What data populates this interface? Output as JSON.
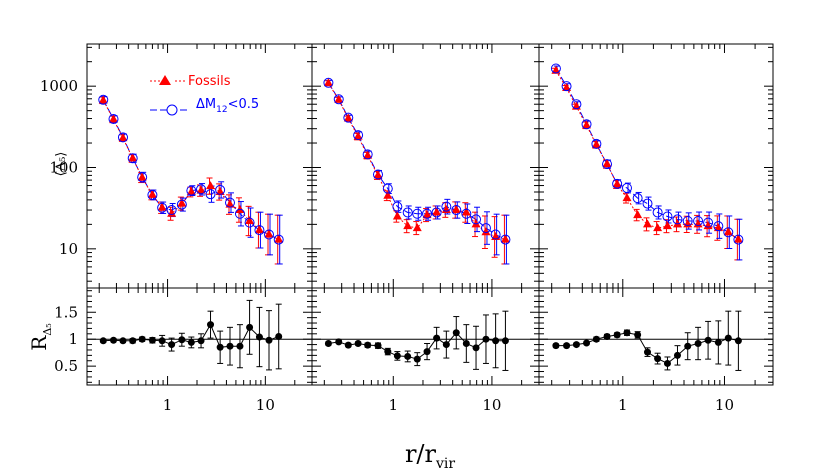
{
  "chart_data": {
    "type": "scatter",
    "description_axes": {
      "xscale": "log",
      "xlim": [
        0.15,
        30
      ],
      "top_yscale": "log",
      "top_ylim": [
        3.3,
        3300
      ],
      "bottom_ylim": [
        0.15,
        1.95
      ]
    },
    "xlabel": "r/r",
    "xlabel_sub": "vir",
    "top_ylabel": "⟨Δ₅⟩",
    "bottom_ylabel": "R",
    "bottom_ylabel_sub": "Δ₅",
    "x_ticks": [
      {
        "v": 1,
        "label": "1"
      },
      {
        "v": 10,
        "label": "10"
      }
    ],
    "top_y_ticks": [
      {
        "v": 10,
        "label": "10"
      },
      {
        "v": 100,
        "label": "100"
      },
      {
        "v": 1000,
        "label": "1000"
      }
    ],
    "bottom_y_ticks": [
      {
        "v": 0.5,
        "label": "0.5"
      },
      {
        "v": 1,
        "label": "1"
      },
      {
        "v": 1.5,
        "label": "1.5"
      }
    ],
    "legend": [
      {
        "name": "Fossils",
        "color": "#ff0000",
        "marker": "triangle",
        "line": "dotted"
      },
      {
        "name": "ΔM",
        "sub": "12",
        "suffix": "<0.5",
        "color": "#0000ff",
        "marker": "circle",
        "line": "dashed"
      }
    ],
    "reference_line": 1,
    "x": [
      0.22,
      0.28,
      0.35,
      0.44,
      0.55,
      0.7,
      0.88,
      1.1,
      1.4,
      1.75,
      2.2,
      2.75,
      3.45,
      4.35,
      5.5,
      6.9,
      8.7,
      10.9,
      13.7
    ],
    "panels": [
      {
        "fossils": [
          670,
          390,
          230,
          130,
          75,
          46,
          32,
          27,
          36,
          50,
          52,
          59,
          50,
          35,
          30,
          22,
          17,
          15,
          13
        ],
        "dm12": [
          680,
          395,
          235,
          130,
          76,
          46,
          32,
          30,
          35,
          52,
          54,
          47,
          53,
          37,
          27,
          21,
          17,
          15,
          13
        ],
        "top_err_lo": [
          0.04,
          0.04,
          0.04,
          0.05,
          0.06,
          0.06,
          0.07,
          0.08,
          0.08,
          0.06,
          0.07,
          0.1,
          0.1,
          0.12,
          0.15,
          0.18,
          0.22,
          0.25,
          0.3
        ],
        "top_err_hi": [
          0.04,
          0.04,
          0.04,
          0.05,
          0.06,
          0.06,
          0.07,
          0.08,
          0.08,
          0.06,
          0.07,
          0.1,
          0.1,
          0.12,
          0.15,
          0.18,
          0.22,
          0.25,
          0.3
        ],
        "ratio": [
          0.97,
          0.98,
          0.97,
          0.97,
          1.0,
          0.98,
          0.97,
          0.9,
          0.99,
          0.94,
          0.97,
          1.27,
          0.85,
          0.87,
          0.87,
          1.22,
          1.04,
          0.98,
          1.05
        ],
        "ratio_err": [
          0.03,
          0.03,
          0.03,
          0.04,
          0.04,
          0.05,
          0.1,
          0.12,
          0.12,
          0.1,
          0.13,
          0.25,
          0.3,
          0.35,
          0.4,
          0.5,
          0.55,
          0.55,
          0.6
        ]
      },
      {
        "fossils": [
          1090,
          680,
          400,
          240,
          140,
          80,
          45,
          25,
          19,
          18,
          26,
          28,
          30,
          30,
          28,
          20,
          16,
          14,
          13
        ],
        "dm12": [
          1100,
          690,
          410,
          250,
          145,
          82,
          55,
          33,
          28,
          27,
          27,
          28,
          33,
          30,
          27,
          23,
          18,
          15,
          13
        ],
        "top_err_lo": [
          0.03,
          0.03,
          0.03,
          0.04,
          0.04,
          0.05,
          0.06,
          0.07,
          0.08,
          0.08,
          0.08,
          0.08,
          0.09,
          0.1,
          0.12,
          0.15,
          0.2,
          0.25,
          0.3
        ],
        "top_err_hi": [
          0.03,
          0.03,
          0.03,
          0.04,
          0.04,
          0.05,
          0.06,
          0.07,
          0.08,
          0.08,
          0.08,
          0.08,
          0.09,
          0.1,
          0.12,
          0.15,
          0.2,
          0.25,
          0.3
        ],
        "ratio": [
          0.92,
          0.95,
          0.89,
          0.92,
          0.89,
          0.88,
          0.77,
          0.69,
          0.68,
          0.63,
          0.77,
          1.02,
          0.9,
          1.12,
          0.92,
          0.84,
          1.0,
          0.97,
          0.97
        ],
        "ratio_err": [
          0.03,
          0.03,
          0.03,
          0.03,
          0.04,
          0.05,
          0.06,
          0.08,
          0.1,
          0.12,
          0.15,
          0.2,
          0.25,
          0.3,
          0.35,
          0.4,
          0.45,
          0.5,
          0.55
        ]
      },
      {
        "fossils": [
          1550,
          950,
          560,
          330,
          190,
          110,
          62,
          42,
          26,
          20,
          18,
          19,
          20,
          20,
          20,
          19,
          18,
          16,
          13
        ],
        "dm12": [
          1650,
          1000,
          600,
          340,
          195,
          110,
          63,
          56,
          42,
          36,
          28,
          25,
          23,
          22,
          22,
          21,
          19,
          16,
          13
        ],
        "top_err_lo": [
          0.03,
          0.03,
          0.03,
          0.04,
          0.04,
          0.05,
          0.05,
          0.06,
          0.07,
          0.08,
          0.08,
          0.08,
          0.09,
          0.1,
          0.11,
          0.13,
          0.15,
          0.2,
          0.25
        ],
        "top_err_hi": [
          0.03,
          0.03,
          0.03,
          0.04,
          0.04,
          0.05,
          0.05,
          0.06,
          0.07,
          0.08,
          0.08,
          0.08,
          0.09,
          0.1,
          0.11,
          0.13,
          0.15,
          0.2,
          0.25
        ],
        "ratio": [
          0.88,
          0.88,
          0.9,
          0.93,
          1.0,
          1.05,
          1.08,
          1.12,
          1.08,
          0.76,
          0.64,
          0.55,
          0.7,
          0.87,
          0.92,
          0.98,
          0.94,
          1.02,
          0.97
        ],
        "ratio_err": [
          0.03,
          0.03,
          0.03,
          0.03,
          0.04,
          0.04,
          0.04,
          0.05,
          0.06,
          0.08,
          0.1,
          0.12,
          0.18,
          0.25,
          0.3,
          0.35,
          0.4,
          0.5,
          0.55
        ]
      }
    ]
  }
}
